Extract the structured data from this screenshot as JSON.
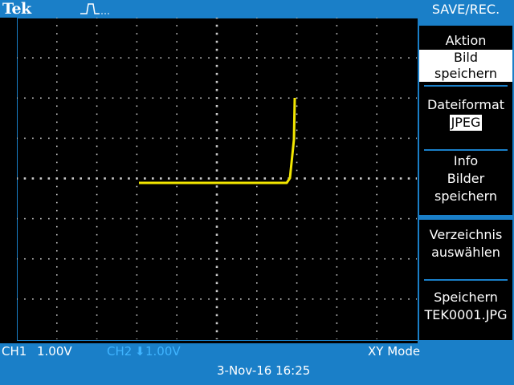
{
  "brand": "Tek",
  "icons": {
    "trigger": "trigger-pulse-icon",
    "ch2_marker": "down-arrow-icon"
  },
  "menu": {
    "title": "SAVE/REC.",
    "items": [
      {
        "label": "Aktion",
        "value": "Bild speichern"
      },
      {
        "label": "Dateiformat",
        "value": "JPEG"
      },
      {
        "line1": "Info",
        "line2": "Bilder",
        "line3": "speichern"
      },
      {
        "line1": "Verzeichnis",
        "line2": "auswählen"
      },
      {
        "line1": "Speichern",
        "line2": "TEK0001.JPG"
      }
    ]
  },
  "status": {
    "ch1_label": "CH1",
    "ch1_scale": "1.00V",
    "ch2_label": "CH2",
    "ch2_scale": "1.00V",
    "mode": "XY Mode",
    "datetime": "3-Nov-16 16:25"
  },
  "colors": {
    "chrome_blue": "#1a7fc8",
    "trace": "#f2e600",
    "ch2": "#3fb4ff",
    "grid": "#cccccc"
  }
}
